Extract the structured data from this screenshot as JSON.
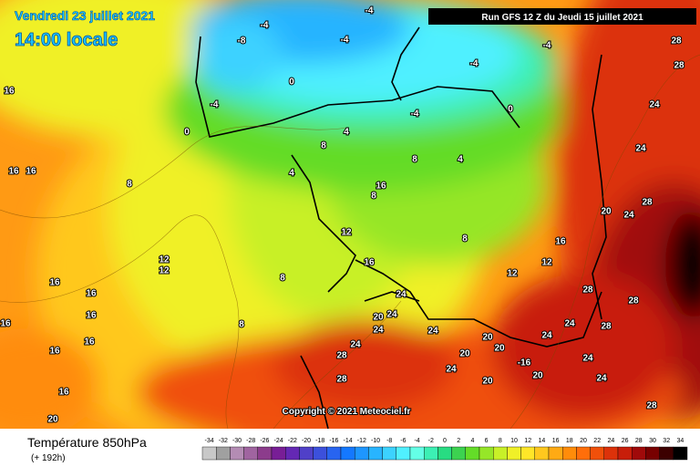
{
  "header": {
    "date": "Vendredi 23 juillet 2021",
    "time": "14:00 locale",
    "run": "Run GFS 12 Z du Jeudi 15 juillet 2021"
  },
  "copyright": "Copyright © 2021 Meteociel.fr",
  "legend": {
    "title": "Température 850hPa",
    "lead": "(+ 192h)",
    "scale": {
      "values": [
        -34,
        -32,
        -30,
        -28,
        -26,
        -24,
        -22,
        -20,
        -18,
        -16,
        -14,
        -12,
        -10,
        -8,
        -6,
        -4,
        -2,
        0,
        2,
        4,
        6,
        8,
        10,
        12,
        14,
        16,
        18,
        20,
        22,
        24,
        26,
        28,
        30,
        32,
        34
      ],
      "colors": [
        "#c8c8c8",
        "#a0a0a0",
        "#b48cb4",
        "#a064a0",
        "#8c3c8c",
        "#781e96",
        "#6428b4",
        "#5040c8",
        "#3c50dc",
        "#2864f0",
        "#1478ff",
        "#1e96ff",
        "#28b4ff",
        "#3cd2ff",
        "#50f0ff",
        "#64ffe6",
        "#3cf0b4",
        "#28dc82",
        "#3cd250",
        "#64dc28",
        "#96e628",
        "#c8f028",
        "#f0f028",
        "#ffe628",
        "#ffc81e",
        "#ffaa14",
        "#ff8c0a",
        "#ff6e0a",
        "#f0500a",
        "#dc320a",
        "#c81e0a",
        "#a00a0a",
        "#780000",
        "#3c0000",
        "#000000"
      ]
    }
  },
  "map": {
    "labels": [
      "16",
      "16",
      "16",
      "16",
      "16",
      "16",
      "16",
      "16",
      "16",
      "16",
      "20",
      "8",
      "12",
      "12",
      "0",
      "-4",
      "-8",
      "-4",
      "0",
      "-4",
      "-4",
      "8",
      "4",
      "4",
      "8",
      "16",
      "12",
      "16",
      "8",
      "8",
      "24",
      "24",
      "20",
      "24",
      "28",
      "28",
      "24",
      "24",
      "20",
      "24",
      "20",
      "20",
      "20",
      "-16",
      "20",
      "24",
      "24",
      "28",
      "28",
      "28",
      "24",
      "24",
      "28",
      "16",
      "12",
      "12",
      "20",
      "24",
      "28",
      "24",
      "24",
      "28",
      "28",
      "0",
      "-4",
      "-4",
      "4",
      "8",
      "8",
      "-4"
    ]
  }
}
